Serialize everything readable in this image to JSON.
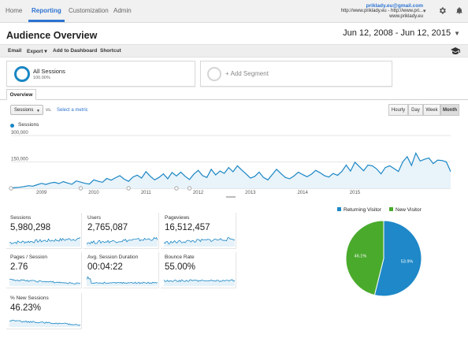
{
  "nav": {
    "items": [
      "Home",
      "Reporting",
      "Customization",
      "Admin"
    ],
    "active": "Reporting"
  },
  "account": {
    "email": "priklady.eu@gmail.com",
    "property": "http://www.priklady.eu - http://www.pri...",
    "view": "www.priklady.eu"
  },
  "header": {
    "title": "Audience Overview",
    "date_range": "Jun 12, 2008 - Jun 12, 2015"
  },
  "toolbar": {
    "email": "Email",
    "export": "Export",
    "add_to_dashboard": "Add to Dashboard",
    "shortcut": "Shortcut"
  },
  "segments": {
    "segment_name": "All Sessions",
    "segment_pct": "100.00%",
    "add_segment": "+ Add Segment"
  },
  "tabs": {
    "overview": "Overview"
  },
  "chart_controls": {
    "metric_select": "Sessions",
    "vs": "vs.",
    "select_metric": "Select a metric",
    "granularity": [
      "Hourly",
      "Day",
      "Week",
      "Month"
    ],
    "active_granularity": "Month"
  },
  "colors": {
    "accent": "#1a86c4",
    "returning": "#1e88c8",
    "new": "#4aaa2c",
    "link": "#2c73d2"
  },
  "chart_data": [
    {
      "type": "area",
      "series": [
        {
          "name": "Sessions",
          "color": "#1a86c4"
        }
      ],
      "ylim": [
        0,
        300000
      ],
      "yticks": [
        "300,000",
        "150,000"
      ],
      "xticks": [
        "2009",
        "2010",
        "2011",
        "2012",
        "2013",
        "2014",
        "2015"
      ],
      "values": [
        2000,
        4000,
        6000,
        10000,
        15000,
        12000,
        20000,
        28000,
        22000,
        30000,
        34000,
        27000,
        38000,
        30000,
        23000,
        42000,
        35000,
        28000,
        24000,
        48000,
        40000,
        34000,
        56000,
        46000,
        60000,
        72000,
        52000,
        40000,
        64000,
        75000,
        58000,
        95000,
        68000,
        48000,
        62000,
        82000,
        54000,
        90000,
        70000,
        92000,
        68000,
        50000,
        80000,
        102000,
        72000,
        62000,
        108000,
        76000,
        98000,
        85000,
        118000,
        94000,
        128000,
        104000,
        82000,
        58000,
        68000,
        92000,
        62000,
        48000,
        78000,
        108000,
        84000,
        62000,
        54000,
        70000,
        92000,
        78000,
        66000,
        80000,
        102000,
        88000,
        72000,
        64000,
        84000,
        74000,
        96000,
        132000,
        98000,
        148000,
        124000,
        100000,
        132000,
        128000,
        110000,
        82000,
        118000,
        128000,
        112000,
        96000,
        150000,
        180000,
        130000,
        200000,
        155000,
        165000,
        172000,
        140000,
        160000,
        158000,
        150000,
        95000
      ]
    },
    {
      "type": "pie",
      "categories": [
        "Returning Visitor",
        "New Visitor"
      ],
      "values": [
        53.9,
        46.1
      ],
      "labels": [
        "53.9%",
        "46.1%"
      ]
    }
  ],
  "metrics": [
    {
      "label": "Sessions",
      "value": "5,980,298"
    },
    {
      "label": "Users",
      "value": "2,765,087"
    },
    {
      "label": "Pageviews",
      "value": "16,512,457"
    },
    {
      "label": "Pages / Session",
      "value": "2.76"
    },
    {
      "label": "Avg. Session Duration",
      "value": "00:04:22"
    },
    {
      "label": "Bounce Rate",
      "value": "55.00%"
    },
    {
      "label": "% New Sessions",
      "value": "46.23%"
    }
  ]
}
